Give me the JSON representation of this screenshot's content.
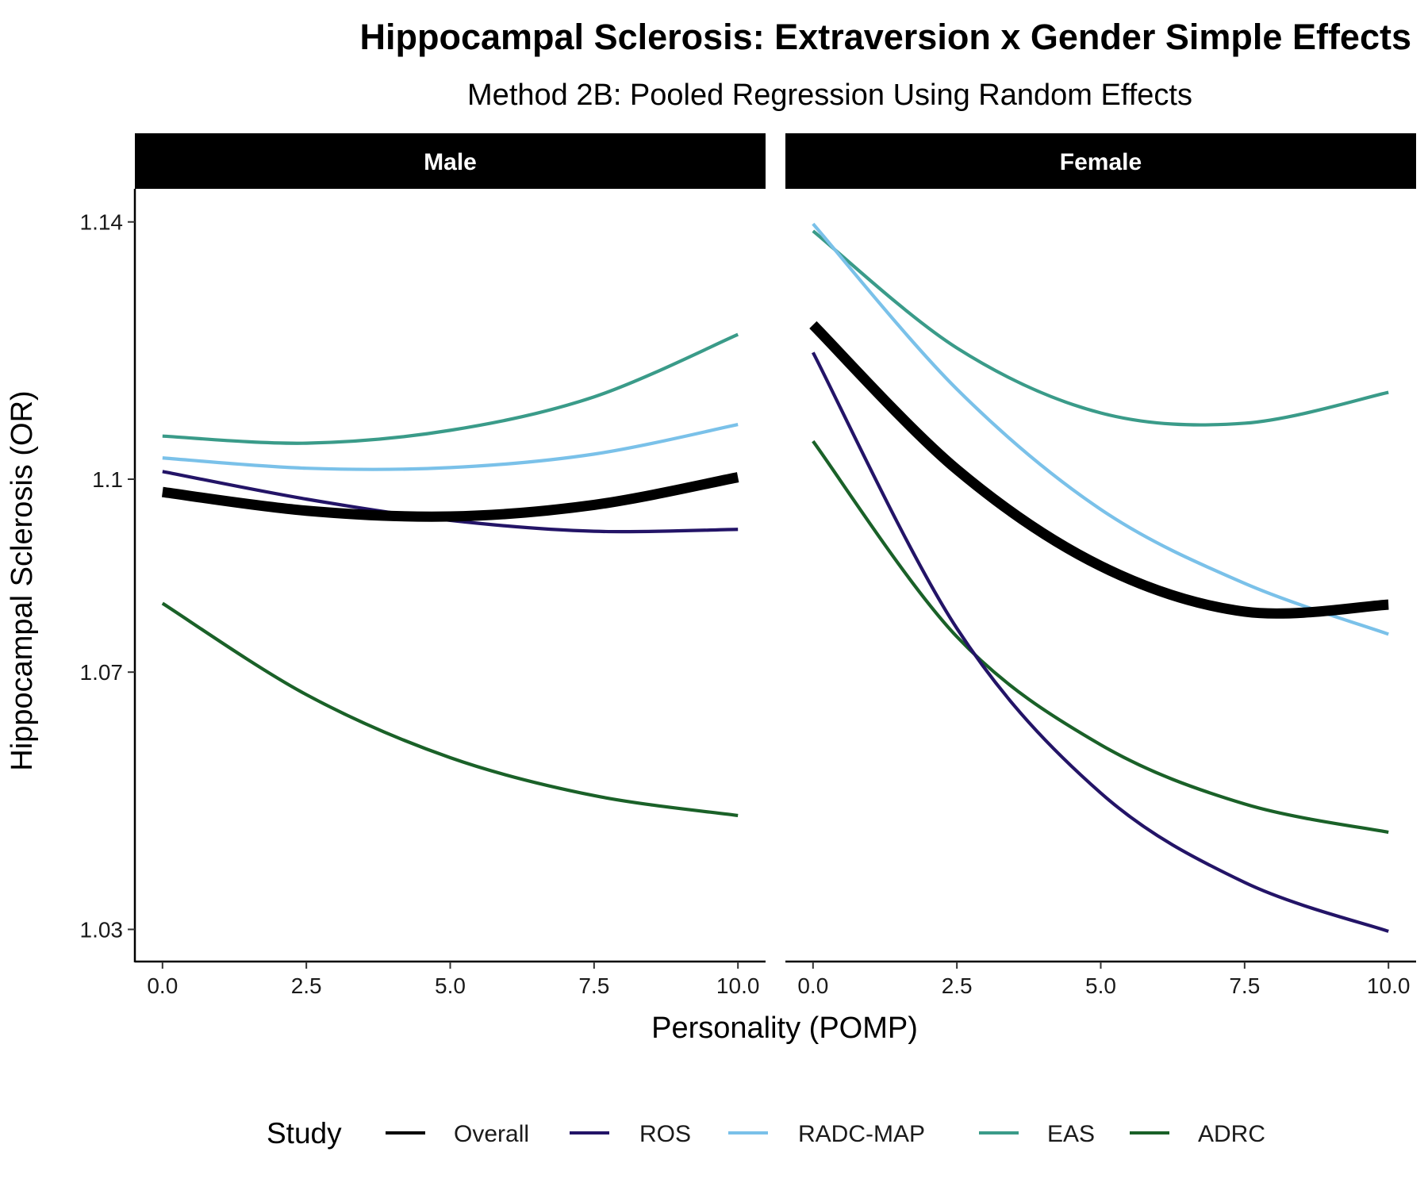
{
  "chart_data": {
    "type": "line",
    "title": "Hippocampal Sclerosis: Extraversion x Gender Simple Effects",
    "subtitle": "Method 2B: Pooled Regression Using Random Effects",
    "xlabel": "Personality (POMP)",
    "ylabel": "Hippocampal Sclerosis (OR)",
    "xlim": [
      -0.48,
      10.48
    ],
    "ylim": [
      1.025,
      1.1449
    ],
    "x_ticks": [
      0,
      2.5,
      5,
      7.5,
      10
    ],
    "x_tick_labels": [
      "0.0",
      "2.5",
      "5.0",
      "7.5",
      "10.0"
    ],
    "y_ticks": [
      1.03,
      1.07,
      1.1,
      1.14
    ],
    "y_tick_labels": [
      "1.03",
      "1.07",
      "1.1",
      "1.14"
    ],
    "grid": false,
    "legend": {
      "title": "Study",
      "position": "bottom",
      "entries": [
        "Overall",
        "ROS",
        "RADC-MAP",
        "EAS",
        "ADRC"
      ]
    },
    "series_styles": {
      "Overall": {
        "color": "#000000",
        "width": "thick"
      },
      "ROS": {
        "color": "#231467",
        "width": "normal"
      },
      "RADC-MAP": {
        "color": "#7ac1e9",
        "width": "normal"
      },
      "EAS": {
        "color": "#3a9b89",
        "width": "normal"
      },
      "ADRC": {
        "color": "#1a6128",
        "width": "normal"
      }
    },
    "x": [
      0,
      2.5,
      5,
      7.5,
      10
    ],
    "panels": [
      {
        "name": "Male",
        "series": [
          {
            "name": "Overall",
            "x": [
              0,
              2.5,
              5,
              7.5,
              10
            ],
            "values": [
              1.098,
              1.0951,
              1.0942,
              1.096,
              1.1003
            ]
          },
          {
            "name": "ROS",
            "x": [
              0,
              2.5,
              5,
              7.5,
              10
            ],
            "values": [
              1.1012,
              1.0969,
              1.0936,
              1.0919,
              1.0922
            ]
          },
          {
            "name": "RADC-MAP",
            "x": [
              0,
              2.5,
              5,
              7.5,
              10
            ],
            "values": [
              1.1033,
              1.1017,
              1.1018,
              1.1039,
              1.1085
            ]
          },
          {
            "name": "EAS",
            "x": [
              0,
              2.5,
              5,
              7.5,
              10
            ],
            "values": [
              1.1067,
              1.1056,
              1.1076,
              1.1128,
              1.1225
            ]
          },
          {
            "name": "ADRC",
            "x": [
              0,
              2.5,
              5,
              7.5,
              10
            ],
            "values": [
              1.0807,
              1.0665,
              1.0567,
              1.0508,
              1.0477
            ]
          }
        ]
      },
      {
        "name": "Female",
        "series": [
          {
            "name": "Overall",
            "x": [
              0,
              2.5,
              5,
              7.5,
              10
            ],
            "values": [
              1.124,
              1.1015,
              1.0865,
              1.0794,
              1.0805
            ]
          },
          {
            "name": "ROS",
            "x": [
              0,
              2.5,
              5,
              7.5,
              10
            ],
            "values": [
              1.1197,
              1.0768,
              1.0512,
              1.0373,
              1.0297
            ]
          },
          {
            "name": "RADC-MAP",
            "x": [
              0,
              2.5,
              5,
              7.5,
              10
            ],
            "values": [
              1.1397,
              1.114,
              1.0953,
              1.0838,
              1.0759
            ]
          },
          {
            "name": "EAS",
            "x": [
              0,
              2.5,
              5,
              7.5,
              10
            ],
            "values": [
              1.1386,
              1.1204,
              1.1103,
              1.1087,
              1.1135
            ]
          },
          {
            "name": "ADRC",
            "x": [
              0,
              2.5,
              5,
              7.5,
              10
            ],
            "values": [
              1.1059,
              1.0755,
              1.0587,
              1.0495,
              1.0451
            ]
          }
        ]
      }
    ]
  }
}
